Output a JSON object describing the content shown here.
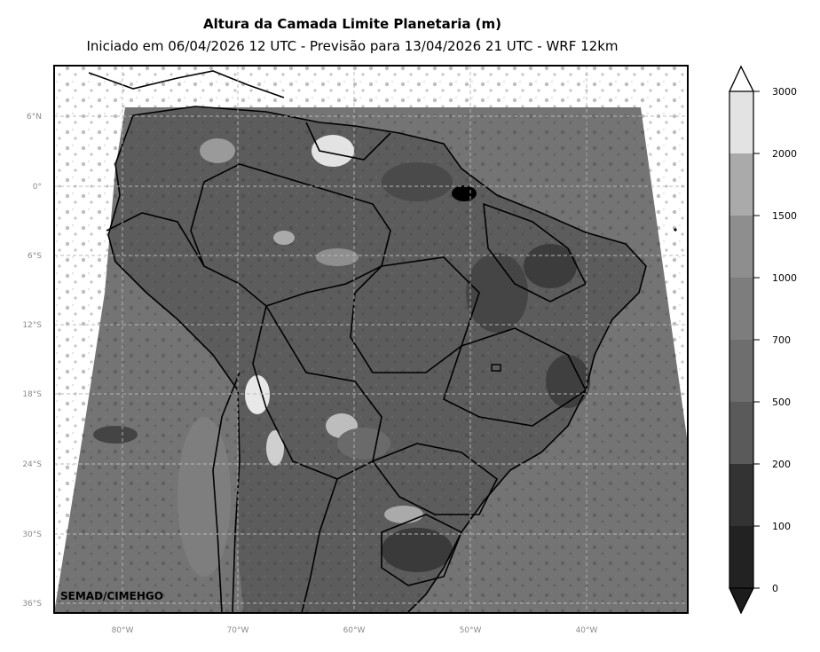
{
  "title": "Altura da Camada Limite Planetaria (m)",
  "subtitle": "Iniciado em 06/04/2026 12 UTC - Previsão para 13/04/2026 21 UTC - WRF 12km",
  "watermark": "SEMAD/CIMEHGO",
  "lat_ticks": [
    "6°N",
    "0°",
    "6°S",
    "12°S",
    "18°S",
    "24°S",
    "30°S",
    "36°S"
  ],
  "lon_ticks": [
    "80°W",
    "70°W",
    "60°W",
    "50°W",
    "40°W"
  ],
  "colorbar": {
    "levels": [
      "0",
      "100",
      "200",
      "500",
      "700",
      "1000",
      "1500",
      "2000",
      "3000"
    ],
    "colors": [
      "#1c1c1c",
      "#222222",
      "#333333",
      "#5a5a5a",
      "#6e6e6e",
      "#7d7d7d",
      "#8e8e8e",
      "#aaaaaa",
      "#e3e3e3",
      "#ffffff"
    ]
  },
  "map_colors": {
    "ocean": "#747474",
    "land": "#5c5c5c",
    "grid": "#b8b8b8"
  }
}
